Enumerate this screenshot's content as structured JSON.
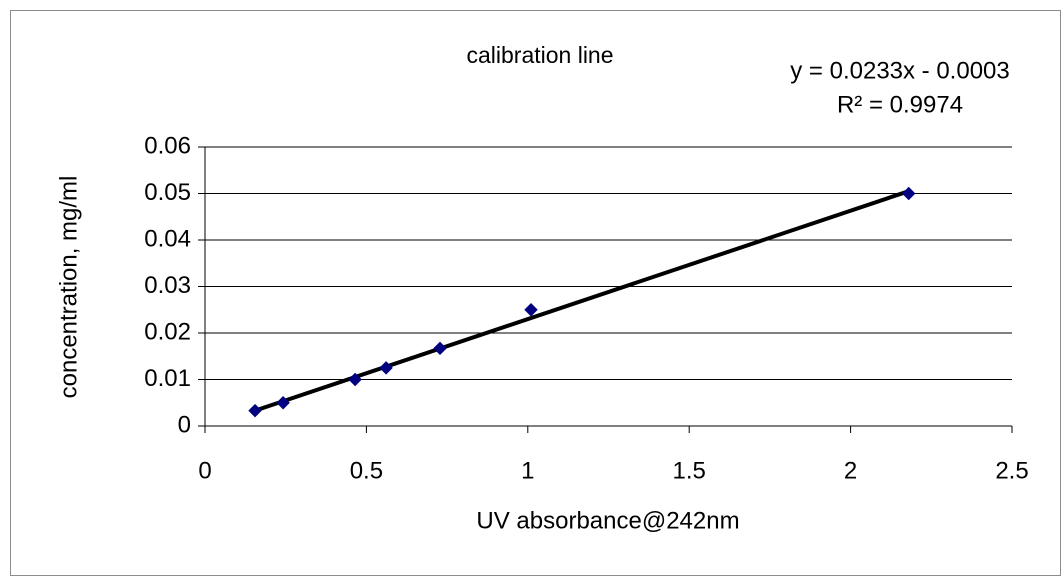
{
  "chart_data": {
    "type": "scatter",
    "title": "calibration line",
    "annotations": [
      "y = 0.0233x - 0.0003",
      "R² = 0.9974"
    ],
    "x_label": "UV absorbance@242nm",
    "y_label": "concentration, mg/ml",
    "series": [
      {
        "name": "data",
        "color": "#000080",
        "x": [
          0.155,
          0.242,
          0.465,
          0.561,
          0.728,
          1.01,
          2.18
        ],
        "values": [
          0.0033,
          0.005,
          0.01,
          0.0125,
          0.0167,
          0.025,
          0.05
        ]
      }
    ],
    "trendline": {
      "color": "#000000",
      "x": [
        0.155,
        2.18
      ],
      "values": [
        0.0033,
        0.0505
      ]
    },
    "xlim": [
      0,
      2.5
    ],
    "xticks": [
      0,
      0.5,
      1,
      1.5,
      2,
      2.5
    ],
    "ylim": [
      0,
      0.06
    ],
    "yticks": [
      0,
      0.01,
      0.02,
      0.03,
      0.04,
      0.05,
      0.06
    ],
    "grid": true
  }
}
